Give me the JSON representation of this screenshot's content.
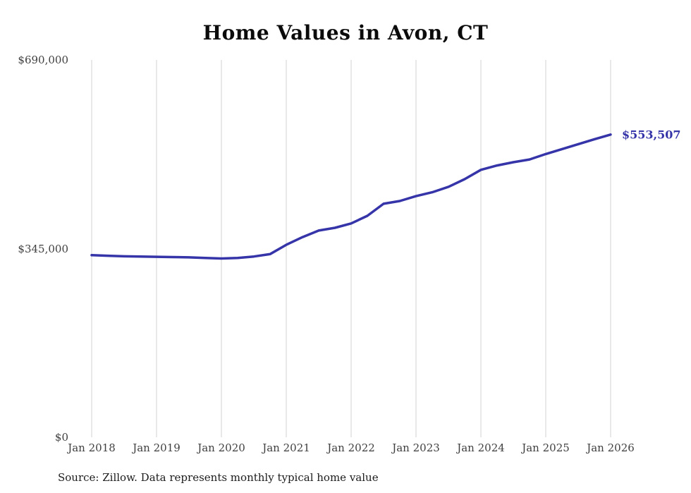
{
  "title": "Home Values in Avon, CT",
  "source_note": "Source: Zillow. Data represents monthly typical home value",
  "colors": {
    "line": "#3534a8",
    "grid": "#d0d0d0",
    "axis_text": "#3f3f3f",
    "title_text": "#0b0b0b",
    "background": "#ffffff"
  },
  "chart_data": {
    "type": "line",
    "title": "Home Values in Avon, CT",
    "xlabel": "",
    "ylabel": "",
    "series_name": "Typical monthly home value (USD)",
    "grid": "vertical-only",
    "legend_position": "none",
    "xlim": [
      2018,
      2026
    ],
    "ylim": [
      0,
      690000
    ],
    "x": [
      2018.0,
      2018.25,
      2018.5,
      2018.75,
      2019.0,
      2019.25,
      2019.5,
      2019.75,
      2020.0,
      2020.25,
      2020.5,
      2020.75,
      2021.0,
      2021.25,
      2021.5,
      2021.75,
      2022.0,
      2022.25,
      2022.5,
      2022.75,
      2023.0,
      2023.25,
      2023.5,
      2023.75,
      2024.0,
      2024.25,
      2024.5,
      2024.75,
      2025.0,
      2025.25,
      2025.5,
      2025.75,
      2026.0
    ],
    "values": [
      333000,
      332000,
      331000,
      330500,
      330000,
      329500,
      329000,
      328000,
      327000,
      328000,
      330500,
      335000,
      352000,
      366000,
      378000,
      383000,
      391000,
      405000,
      427000,
      432000,
      441000,
      448000,
      458000,
      472000,
      489000,
      497000,
      503000,
      508000,
      518000,
      527000,
      536000,
      545000,
      553507
    ],
    "x_ticks": [
      {
        "value": 2018,
        "label": "Jan 2018"
      },
      {
        "value": 2019,
        "label": "Jan 2019"
      },
      {
        "value": 2020,
        "label": "Jan 2020"
      },
      {
        "value": 2021,
        "label": "Jan 2021"
      },
      {
        "value": 2022,
        "label": "Jan 2022"
      },
      {
        "value": 2023,
        "label": "Jan 2023"
      },
      {
        "value": 2024,
        "label": "Jan 2024"
      },
      {
        "value": 2025,
        "label": "Jan 2025"
      },
      {
        "value": 2026,
        "label": "Jan 2026"
      }
    ],
    "y_ticks": [
      {
        "value": 0,
        "label": "$0"
      },
      {
        "value": 345000,
        "label": "$345,000"
      },
      {
        "value": 690000,
        "label": "$690,000"
      }
    ],
    "annotation": {
      "text": "$553,507",
      "x": 2026.0,
      "value": 553507
    }
  }
}
